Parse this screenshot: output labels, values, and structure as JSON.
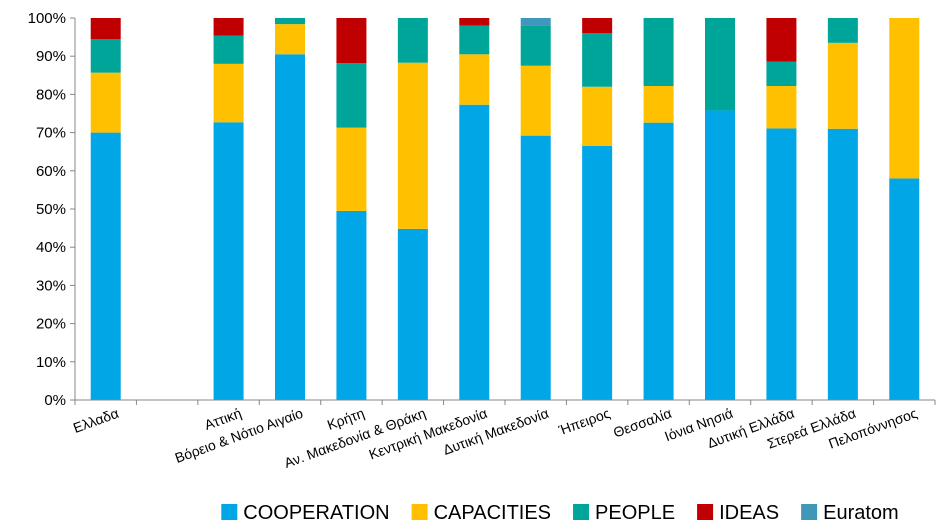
{
  "chart_data": {
    "type": "bar",
    "stacked": true,
    "percent_stacked": true,
    "title": "",
    "xlabel": "",
    "ylabel": "",
    "ylim": [
      0,
      100
    ],
    "yticks": [
      "0%",
      "10%",
      "20%",
      "30%",
      "40%",
      "50%",
      "60%",
      "70%",
      "80%",
      "90%",
      "100%"
    ],
    "grid": false,
    "legend_position": "bottom",
    "categories": [
      "Ελλαδα",
      "",
      "Αττική",
      "Βόρειο & Νότιο Αιγαίο",
      "Κρήτη",
      "Αν. Μακεδονία & Θράκη",
      "Κεντρική Μακεδονία",
      "Δυτική Μακεδονία",
      "Ήπειρος",
      "Θεσσαλία",
      "Ιόνια Νησιά",
      "Δυτική Ελλάδα",
      "Στερεά Ελλάδα",
      "Πελοπόννησος"
    ],
    "series": [
      {
        "name": "COOPERATION",
        "color": "#00A6E6",
        "values": [
          70,
          0,
          72.7,
          90.5,
          49.5,
          44.8,
          77.3,
          69.2,
          66.5,
          72.6,
          75.8,
          71.1,
          71.0,
          58.0
        ]
      },
      {
        "name": "CAPACITIES",
        "color": "#FFC000",
        "values": [
          15.7,
          0,
          15.3,
          7.9,
          21.8,
          43.5,
          13.2,
          18.3,
          15.5,
          9.6,
          0,
          11.1,
          22.5,
          42.0
        ]
      },
      {
        "name": "PEOPLE",
        "color": "#00A59A",
        "values": [
          8.8,
          0,
          7.4,
          1.6,
          16.9,
          11.7,
          7.5,
          10.6,
          14.0,
          17.8,
          24.2,
          6.4,
          6.5,
          0
        ]
      },
      {
        "name": "IDEAS",
        "color": "#C00000",
        "values": [
          5.5,
          0,
          4.6,
          0,
          11.8,
          0,
          2.0,
          0,
          4.0,
          0,
          0,
          11.4,
          0,
          0
        ]
      },
      {
        "name": "Euratom",
        "color": "#4197B9",
        "values": [
          0,
          0,
          0,
          0,
          0,
          0,
          0,
          1.9,
          0,
          0,
          0,
          0,
          0,
          0
        ]
      }
    ]
  }
}
